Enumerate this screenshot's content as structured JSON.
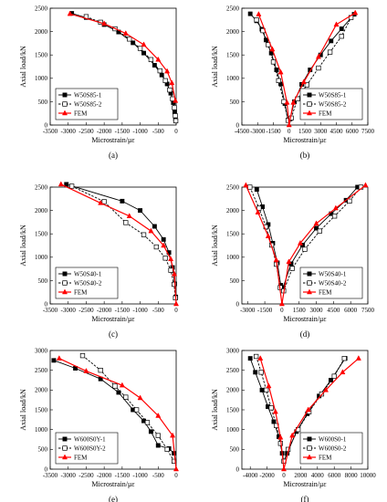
{
  "chart_data": [
    {
      "type": "line",
      "caption": "(a)",
      "xlabel": "Microstrain/με",
      "ylabel": "Axial load/kN",
      "xlim": [
        -3500,
        0
      ],
      "ylim": [
        0,
        2500
      ],
      "xticks": [
        "-3500",
        "-3000",
        "-2500",
        "-2000",
        "-1500",
        "-1000",
        "-500",
        "0"
      ],
      "yticks": [
        "0",
        "500",
        "1000",
        "1500",
        "2000",
        "2500"
      ],
      "legend_position": "bottom-left",
      "series": [
        {
          "name": "W50S85-1",
          "style": "solid-square",
          "color": "#000000",
          "x": [
            -2900,
            -2500,
            -2000,
            -1600,
            -1200,
            -900,
            -600,
            -400,
            -250,
            -150,
            -80,
            -40,
            -20
          ],
          "y": [
            2390,
            2300,
            2150,
            1990,
            1760,
            1540,
            1280,
            1070,
            880,
            680,
            480,
            280,
            120
          ]
        },
        {
          "name": "W50S85-2",
          "style": "dashed-open-square",
          "color": "#000000",
          "x": [
            -2500,
            -2100,
            -1700,
            -1300,
            -1000,
            -700,
            -450,
            -300,
            -180,
            -100,
            -50,
            -25,
            -10
          ],
          "y": [
            2320,
            2200,
            2060,
            1840,
            1640,
            1400,
            1160,
            950,
            750,
            560,
            370,
            200,
            90
          ]
        },
        {
          "name": "FEM",
          "style": "red-triangle",
          "color": "#ff0000",
          "x": [
            -2950,
            -2000,
            -1400,
            -900,
            -500,
            -250,
            -120,
            -20
          ],
          "y": [
            2380,
            2170,
            1960,
            1720,
            1400,
            1150,
            900,
            520
          ]
        }
      ]
    },
    {
      "type": "line",
      "caption": "(b)",
      "xlabel": "Microstrain/με",
      "ylabel": "Axial load/kN",
      "xlim": [
        -4500,
        7500
      ],
      "ylim": [
        0,
        2500
      ],
      "xticks": [
        "-4500",
        "-3000",
        "-1500",
        "0",
        "1500",
        "3000",
        "4500",
        "6000",
        "7500"
      ],
      "yticks": [
        "0",
        "500",
        "1000",
        "1500",
        "2000",
        "2500"
      ],
      "legend_position": "bottom-right",
      "series": [
        {
          "name": "W50S85-1",
          "style": "solid-square",
          "color": "#000000",
          "x": [
            -3700,
            -3100,
            -2600,
            -2200,
            -1700,
            -1200,
            -800,
            -400,
            -100,
            100,
            500,
            1200,
            2000,
            3000,
            4000,
            5000,
            6200
          ],
          "y": [
            2380,
            2230,
            2050,
            1820,
            1540,
            1180,
            880,
            460,
            100,
            130,
            500,
            870,
            1180,
            1500,
            1800,
            2060,
            2370
          ]
        },
        {
          "name": "W50S85-2",
          "style": "dashed-open-square",
          "color": "#000000",
          "x": [
            -3100,
            -2500,
            -2000,
            -1500,
            -1000,
            -500,
            -100,
            200,
            800,
            1700,
            2800,
            3900,
            5000,
            5900
          ],
          "y": [
            2250,
            2020,
            1720,
            1350,
            950,
            500,
            100,
            150,
            560,
            860,
            1220,
            1560,
            1900,
            2300
          ]
        },
        {
          "name": "FEM",
          "style": "red-triangle",
          "color": "#ff0000",
          "x": [
            -2900,
            -1600,
            -800,
            -200,
            0,
            400,
            1400,
            2800,
            4500,
            6300
          ],
          "y": [
            2370,
            1620,
            1130,
            480,
            0,
            480,
            920,
            1460,
            2150,
            2400
          ]
        }
      ]
    },
    {
      "type": "line",
      "caption": "(c)",
      "xlabel": "Microstrain/με",
      "ylabel": "Axial load/kN",
      "xlim": [
        -3500,
        0
      ],
      "ylim": [
        0,
        2500
      ],
      "xticks": [
        "-3500",
        "-3000",
        "-2500",
        "-2000",
        "-1500",
        "-1000",
        "-500",
        "0"
      ],
      "yticks": [
        "0",
        "500",
        "1000",
        "1500",
        "2000",
        "2500"
      ],
      "legend_position": "bottom-left",
      "series": [
        {
          "name": "W50S40-1",
          "style": "solid-square",
          "color": "#000000",
          "x": [
            -3050,
            -1500,
            -1000,
            -600,
            -350,
            -200,
            -100,
            -40,
            -10
          ],
          "y": [
            2560,
            2200,
            2000,
            1660,
            1380,
            1100,
            780,
            430,
            150
          ]
        },
        {
          "name": "W50S40-2",
          "style": "dashed-open-square",
          "color": "#000000",
          "x": [
            -2900,
            -2000,
            -1400,
            -900,
            -550,
            -300,
            -150,
            -60,
            -20
          ],
          "y": [
            2520,
            2190,
            1740,
            1480,
            1220,
            980,
            720,
            420,
            130
          ]
        },
        {
          "name": "FEM",
          "style": "red-triangle",
          "color": "#ff0000",
          "x": [
            -3200,
            -2100,
            -1300,
            -700,
            -350,
            -150,
            -50,
            0
          ],
          "y": [
            2560,
            2160,
            1880,
            1560,
            1250,
            960,
            640,
            0
          ]
        }
      ]
    },
    {
      "type": "line",
      "caption": "(d)",
      "xlabel": "Microstrain/με",
      "ylabel": "Axial load/kN",
      "xlim": [
        -3500,
        7500
      ],
      "ylim": [
        0,
        2500
      ],
      "xticks": [
        "-3000",
        "-1500",
        "0",
        "1500",
        "3000",
        "4500",
        "6000",
        "7500"
      ],
      "yticks": [
        "0",
        "500",
        "1000",
        "1500",
        "2000",
        "2500"
      ],
      "legend_position": "bottom-right",
      "series": [
        {
          "name": "W50S40-1",
          "style": "solid-square",
          "color": "#000000",
          "x": [
            -2200,
            -1700,
            -1200,
            -800,
            -400,
            -100,
            100,
            800,
            1800,
            3000,
            4300,
            5600,
            6600
          ],
          "y": [
            2450,
            2080,
            1700,
            1300,
            880,
            400,
            350,
            860,
            1260,
            1620,
            1930,
            2220,
            2500
          ]
        },
        {
          "name": "W50S40-2",
          "style": "dashed-open-square",
          "color": "#000000",
          "x": [
            -2800,
            -2000,
            -1400,
            -900,
            -500,
            -150,
            150,
            900,
            2000,
            3300,
            4600,
            5900,
            6900
          ],
          "y": [
            2500,
            2050,
            1650,
            1260,
            850,
            350,
            280,
            760,
            1170,
            1560,
            1880,
            2200,
            2500
          ]
        },
        {
          "name": "FEM",
          "style": "red-triangle",
          "color": "#ff0000",
          "x": [
            -3150,
            -2100,
            -1200,
            -500,
            0,
            600,
            1600,
            3000,
            4700,
            7300
          ],
          "y": [
            2540,
            1960,
            1450,
            940,
            0,
            900,
            1300,
            1720,
            2050,
            2540
          ]
        }
      ]
    },
    {
      "type": "line",
      "caption": "(e)",
      "xlabel": "Microstrain/με",
      "ylabel": "Axial load/kN",
      "xlim": [
        -3500,
        0
      ],
      "ylim": [
        0,
        3000
      ],
      "xticks": [
        "-3500",
        "-3000",
        "-2500",
        "-2000",
        "-1500",
        "-1000",
        "-500",
        "0"
      ],
      "yticks": [
        "0",
        "500",
        "1000",
        "1500",
        "2000",
        "2500",
        "3000"
      ],
      "legend_position": "bottom-left",
      "series": [
        {
          "name": "W600S0Y-1",
          "style": "solid-square",
          "color": "#000000",
          "x": [
            -3400,
            -2800,
            -2100,
            -1600,
            -1200,
            -900,
            -700,
            -500,
            -200,
            -60
          ],
          "y": [
            2750,
            2550,
            2280,
            1940,
            1500,
            1220,
            950,
            600,
            520,
            400
          ]
        },
        {
          "name": "W600S0Y-2",
          "style": "dashed-open-square",
          "color": "#000000",
          "x": [
            -2600,
            -2100,
            -1700,
            -1400,
            -1100,
            -800,
            -500,
            -250,
            -60
          ],
          "y": [
            2870,
            2500,
            2100,
            1820,
            1500,
            1180,
            850,
            500,
            200
          ]
        },
        {
          "name": "FEM",
          "style": "red-triangle",
          "color": "#ff0000",
          "x": [
            -3250,
            -2500,
            -1500,
            -1000,
            -500,
            -100,
            0
          ],
          "y": [
            2800,
            2480,
            2120,
            1800,
            1350,
            850,
            0
          ]
        }
      ]
    },
    {
      "type": "line",
      "caption": "(f)",
      "xlabel": "Microstrain/με",
      "ylabel": "Axial load/kN",
      "xlim": [
        -5000,
        10000
      ],
      "ylim": [
        0,
        3000
      ],
      "xticks": [
        "-4000",
        "-2000",
        "0",
        "2000",
        "4000",
        "6000",
        "8000",
        "10000"
      ],
      "yticks": [
        "0",
        "500",
        "1000",
        "1500",
        "2000",
        "2500",
        "3000"
      ],
      "legend_position": "bottom-right",
      "series": [
        {
          "name": "W600S0-1",
          "style": "solid-square",
          "color": "#000000",
          "x": [
            -4000,
            -3400,
            -2600,
            -1900,
            -1200,
            -600,
            -200,
            0,
            400,
            1500,
            2800,
            4200,
            5600,
            7300
          ],
          "y": [
            2800,
            2450,
            2000,
            1580,
            1200,
            820,
            400,
            200,
            400,
            950,
            1400,
            1850,
            2250,
            2800
          ]
        },
        {
          "name": "W600S0-2",
          "style": "dashed-open-square",
          "color": "#000000",
          "x": [
            -3300,
            -2700,
            -2100,
            -1500,
            -900,
            -400,
            0,
            500,
            1700,
            3000,
            4500,
            6000,
            7200
          ],
          "y": [
            2850,
            2450,
            2000,
            1550,
            1100,
            650,
            200,
            500,
            1000,
            1450,
            1900,
            2350,
            2800
          ]
        },
        {
          "name": "FEM",
          "style": "red-triangle",
          "color": "#ff0000",
          "x": [
            -2800,
            -1800,
            -1000,
            -400,
            0,
            1000,
            2900,
            5000,
            7000,
            8900
          ],
          "y": [
            2800,
            2100,
            1450,
            800,
            0,
            850,
            1500,
            2000,
            2450,
            2800
          ]
        }
      ]
    }
  ]
}
